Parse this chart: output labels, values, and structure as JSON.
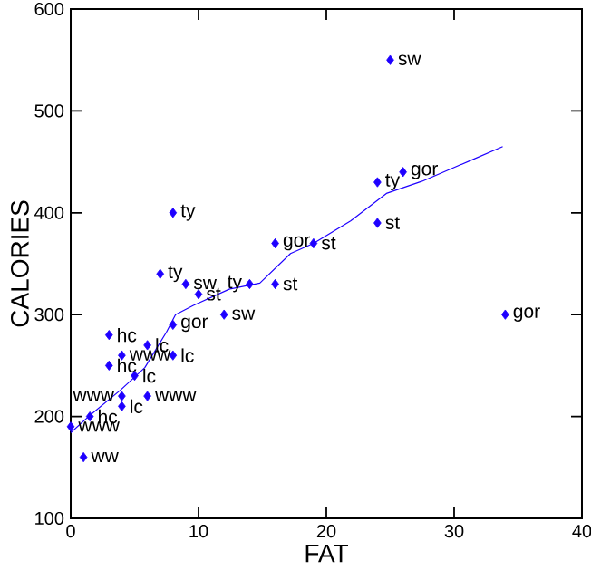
{
  "chart_data": {
    "type": "scatter",
    "xlabel": "FAT",
    "ylabel": "CALORIES",
    "xlim": [
      0,
      40
    ],
    "ylim": [
      100,
      600
    ],
    "xticks": [
      0,
      10,
      20,
      30,
      40
    ],
    "yticks": [
      100,
      200,
      300,
      400,
      500,
      600
    ],
    "marker": "diamond",
    "series": [
      {
        "color": "#1e00ff",
        "x": [
          25,
          26,
          24,
          24,
          8,
          16,
          19,
          7,
          9,
          14,
          16,
          10,
          12,
          8,
          3,
          6,
          4,
          8,
          3,
          5,
          4,
          6,
          4,
          1.5,
          0,
          1,
          34
        ],
        "values": [
          550,
          440,
          430,
          390,
          400,
          370,
          370,
          340,
          330,
          330,
          330,
          320,
          300,
          290,
          280,
          270,
          260,
          260,
          250,
          240,
          220,
          220,
          210,
          200,
          190,
          160,
          300
        ]
      },
      {
        "type": "line",
        "marker": "none",
        "color": "#1e00ff",
        "x": [
          0,
          1.4,
          3.9,
          5.8,
          7.5,
          8.2,
          9.6,
          12.4,
          14.8,
          17.2,
          19,
          21.9,
          24.7,
          27.5,
          31.4,
          33.8
        ],
        "values": [
          184,
          200,
          226,
          248,
          283,
          300,
          309,
          325,
          331,
          360,
          370,
          392,
          419,
          431,
          452,
          465
        ]
      }
    ],
    "annotations": [
      {
        "text": "sw",
        "x": 25,
        "y": 550
      },
      {
        "text": "gor",
        "x": 26,
        "y": 440
      },
      {
        "text": "ty",
        "x": 24,
        "y": 430
      },
      {
        "text": "st",
        "x": 24,
        "y": 390
      },
      {
        "text": "ty",
        "x": 8,
        "y": 400
      },
      {
        "text": "gor",
        "x": 16,
        "y": 370
      },
      {
        "text": "st",
        "x": 19,
        "y": 370
      },
      {
        "text": "ty",
        "x": 7,
        "y": 340
      },
      {
        "text": "sw",
        "x": 9,
        "y": 330
      },
      {
        "text": "ty",
        "x": 14,
        "y": 330
      },
      {
        "text": "st",
        "x": 16,
        "y": 330
      },
      {
        "text": "st",
        "x": 10,
        "y": 320
      },
      {
        "text": "sw",
        "x": 12,
        "y": 300
      },
      {
        "text": "gor",
        "x": 8,
        "y": 290
      },
      {
        "text": "hc",
        "x": 3,
        "y": 280
      },
      {
        "text": "lc",
        "x": 6,
        "y": 270
      },
      {
        "text": "www",
        "x": 4,
        "y": 260
      },
      {
        "text": "lc",
        "x": 8,
        "y": 260
      },
      {
        "text": "hc",
        "x": 3,
        "y": 250
      },
      {
        "text": "lc",
        "x": 5,
        "y": 240
      },
      {
        "text": "www",
        "x": 4,
        "y": 220
      },
      {
        "text": "www",
        "x": 6,
        "y": 220
      },
      {
        "text": "lc",
        "x": 4,
        "y": 210
      },
      {
        "text": "hc",
        "x": 1.5,
        "y": 200
      },
      {
        "text": "www",
        "x": 0,
        "y": 190
      },
      {
        "text": "ww",
        "x": 1,
        "y": 160
      },
      {
        "text": "gor",
        "x": 34,
        "y": 300
      }
    ]
  }
}
